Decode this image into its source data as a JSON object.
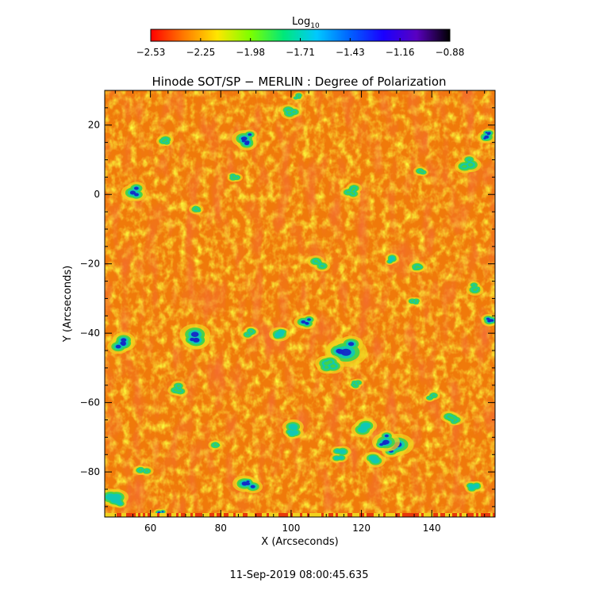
{
  "chart_data": {
    "type": "heatmap",
    "title": "Hinode SOT/SP − MERLIN : Degree of Polarization",
    "xlabel": "X (Arcseconds)",
    "ylabel": "Y (Arcseconds)",
    "xlim": [
      47,
      158
    ],
    "ylim": [
      -93,
      30
    ],
    "x_ticks": [
      60,
      80,
      100,
      120,
      140
    ],
    "y_ticks": [
      20,
      0,
      -20,
      -40,
      -60,
      -80
    ],
    "colorbar": {
      "title": "Log",
      "title_subscript": "10",
      "range": [
        -2.53,
        -0.88
      ],
      "ticks": [
        "−2.53",
        "−2.25",
        "−1.98",
        "−1.71",
        "−1.43",
        "−1.16",
        "−0.88"
      ],
      "colors": [
        "#ff0000",
        "#ff7a00",
        "#ffe600",
        "#7cff00",
        "#00e87a",
        "#00c8ff",
        "#0060ff",
        "#1a00ff",
        "#5a00c0",
        "#000000"
      ]
    },
    "background_colors": [
      "#f07a0a",
      "#f28c14",
      "#ee6a08",
      "#f29a1c"
    ],
    "colors": {
      "warm_red": "#e8380a",
      "yellow": "#f0d21e",
      "green": "#40d24c",
      "cyan": "#10c8b4",
      "blue": "#1428c8"
    },
    "features": [
      {
        "x": 115,
        "y": -44,
        "size": 3.2,
        "core": "blue"
      },
      {
        "x": 130,
        "y": -73,
        "size": 2.6,
        "core": "blue"
      },
      {
        "x": 126,
        "y": -71,
        "size": 2.2,
        "core": "blue"
      },
      {
        "x": 72,
        "y": -41,
        "size": 2.4,
        "core": "blue"
      },
      {
        "x": 56,
        "y": 1,
        "size": 2.0,
        "core": "blue"
      },
      {
        "x": 88,
        "y": 16,
        "size": 2.0,
        "core": "blue"
      },
      {
        "x": 52,
        "y": -43,
        "size": 1.8,
        "core": "blue"
      },
      {
        "x": 104,
        "y": -37,
        "size": 1.6,
        "core": "blue"
      },
      {
        "x": 108,
        "y": -20,
        "size": 1.3,
        "core": "green"
      },
      {
        "x": 97,
        "y": -40,
        "size": 1.6,
        "core": "cyan"
      },
      {
        "x": 120,
        "y": -67,
        "size": 2.0,
        "core": "cyan"
      },
      {
        "x": 111,
        "y": -49,
        "size": 1.8,
        "core": "green"
      },
      {
        "x": 101,
        "y": -68,
        "size": 1.8,
        "core": "cyan"
      },
      {
        "x": 114,
        "y": -75,
        "size": 1.6,
        "core": "cyan"
      },
      {
        "x": 150,
        "y": 9,
        "size": 1.6,
        "core": "green"
      },
      {
        "x": 156,
        "y": 17,
        "size": 1.4,
        "core": "blue"
      },
      {
        "x": 156,
        "y": -36,
        "size": 1.6,
        "core": "blue"
      },
      {
        "x": 88,
        "y": -84,
        "size": 1.8,
        "core": "blue"
      },
      {
        "x": 50,
        "y": -88,
        "size": 1.8,
        "core": "cyan"
      },
      {
        "x": 146,
        "y": -65,
        "size": 1.4,
        "core": "green"
      },
      {
        "x": 153,
        "y": -27,
        "size": 1.3,
        "core": "green"
      },
      {
        "x": 136,
        "y": -21,
        "size": 1.3,
        "core": "green"
      },
      {
        "x": 128,
        "y": -19,
        "size": 1.2,
        "core": "cyan"
      },
      {
        "x": 64,
        "y": 15,
        "size": 1.2,
        "core": "green"
      },
      {
        "x": 100,
        "y": 24,
        "size": 1.3,
        "core": "green"
      },
      {
        "x": 102,
        "y": 28,
        "size": 1.0,
        "core": "green"
      },
      {
        "x": 88,
        "y": -40,
        "size": 1.1,
        "core": "green"
      },
      {
        "x": 68,
        "y": -56,
        "size": 1.2,
        "core": "green"
      },
      {
        "x": 117,
        "y": 1,
        "size": 1.2,
        "core": "green"
      },
      {
        "x": 79,
        "y": -72,
        "size": 1.1,
        "core": "green"
      },
      {
        "x": 140,
        "y": -58,
        "size": 1.1,
        "core": "green"
      },
      {
        "x": 58,
        "y": -80,
        "size": 1.2,
        "core": "green"
      },
      {
        "x": 152,
        "y": -84,
        "size": 1.2,
        "core": "cyan"
      },
      {
        "x": 118,
        "y": -55,
        "size": 1.3,
        "core": "green"
      },
      {
        "x": 124,
        "y": -76,
        "size": 1.5,
        "core": "cyan"
      },
      {
        "x": 63,
        "y": -92,
        "size": 1.1,
        "core": "blue"
      },
      {
        "x": 137,
        "y": 7,
        "size": 1.0,
        "core": "green"
      },
      {
        "x": 84,
        "y": 5,
        "size": 1.0,
        "core": "green"
      },
      {
        "x": 73,
        "y": -4,
        "size": 1.1,
        "core": "green"
      },
      {
        "x": 135,
        "y": -31,
        "size": 1.0,
        "core": "green"
      }
    ]
  },
  "footer": {
    "date_text": "11-Sep-2019 08:00:45.635"
  }
}
